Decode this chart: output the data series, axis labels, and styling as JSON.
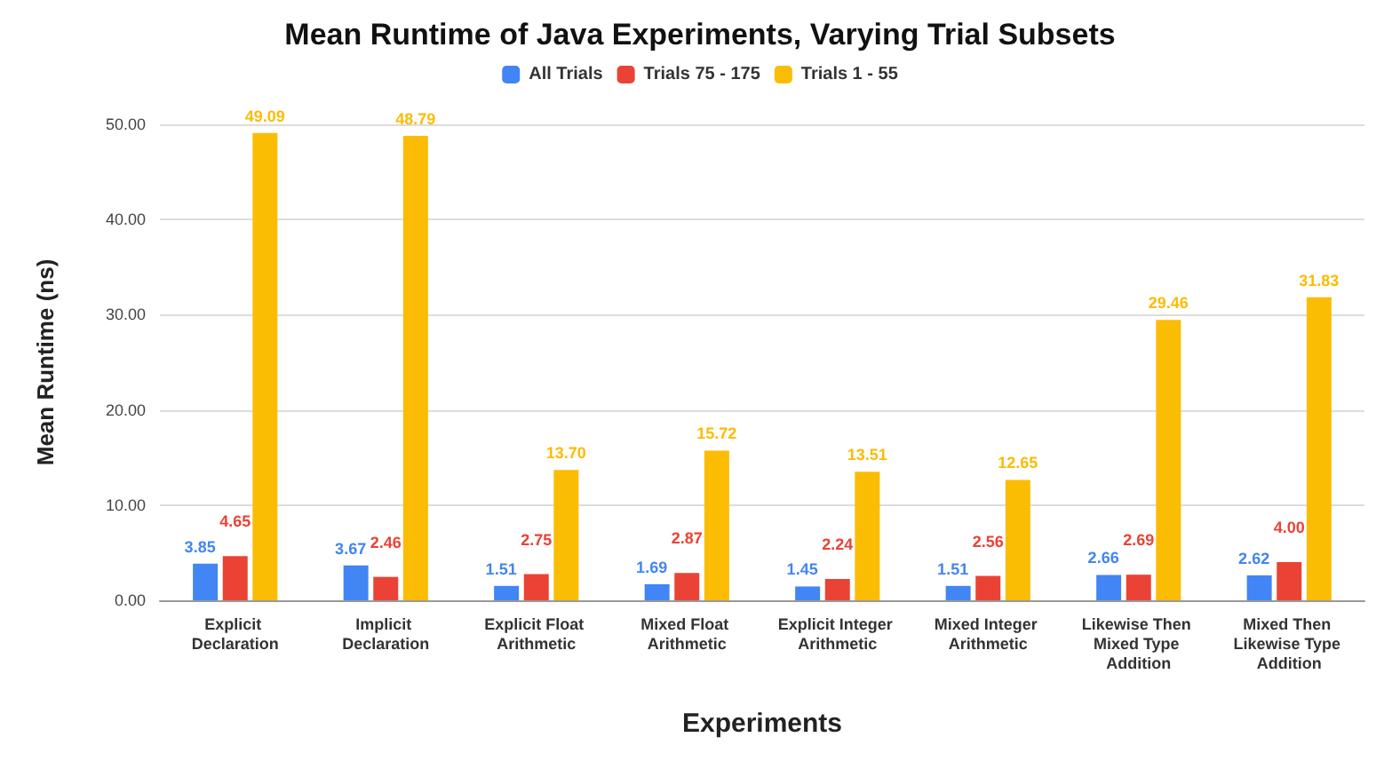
{
  "chart_data": {
    "type": "bar",
    "title": "Mean Runtime of Java Experiments, Varying Trial Subsets",
    "xlabel": "Experiments",
    "ylabel": "Mean Runtime (ns)",
    "categories": [
      "Explicit Declaration",
      "Implicit Declaration",
      "Explicit Float Arithmetic",
      "Mixed Float Arithmetic",
      "Explicit Integer Arithmetic",
      "Mixed Integer Arithmetic",
      "Likewise Then Mixed Type Addition",
      "Mixed Then Likewise Type Addition"
    ],
    "series": [
      {
        "name": "All Trials",
        "color": "#4285f4",
        "values": [
          3.85,
          3.67,
          1.51,
          1.69,
          1.45,
          1.51,
          2.66,
          2.62
        ],
        "value_labels": [
          "3.85",
          "3.67",
          "1.51",
          "1.69",
          "1.45",
          "1.51",
          "2.66",
          "2.62"
        ]
      },
      {
        "name": "Trials 75 - 175",
        "color": "#ea4335",
        "values": [
          4.65,
          2.46,
          2.75,
          2.87,
          2.24,
          2.56,
          2.69,
          4.0
        ],
        "value_labels": [
          "4.65",
          "2.46",
          "2.75",
          "2.87",
          "2.24",
          "2.56",
          "2.69",
          "4.00"
        ]
      },
      {
        "name": "Trials 1 - 55",
        "color": "#fbbc04",
        "values": [
          49.09,
          48.79,
          13.7,
          15.72,
          13.51,
          12.65,
          29.46,
          31.83
        ],
        "value_labels": [
          "49.09",
          "48.79",
          "13.70",
          "15.72",
          "13.51",
          "12.65",
          "29.46",
          "31.83"
        ]
      }
    ],
    "ylim": [
      0,
      50
    ],
    "yticks": [
      {
        "value": 0,
        "label": "0.00"
      },
      {
        "value": 10,
        "label": "10.00"
      },
      {
        "value": 20,
        "label": "20.00"
      },
      {
        "value": 30,
        "label": "30.00"
      },
      {
        "value": 40,
        "label": "40.00"
      },
      {
        "value": 50,
        "label": "50.00"
      }
    ],
    "grid": "y",
    "legend": "top"
  }
}
